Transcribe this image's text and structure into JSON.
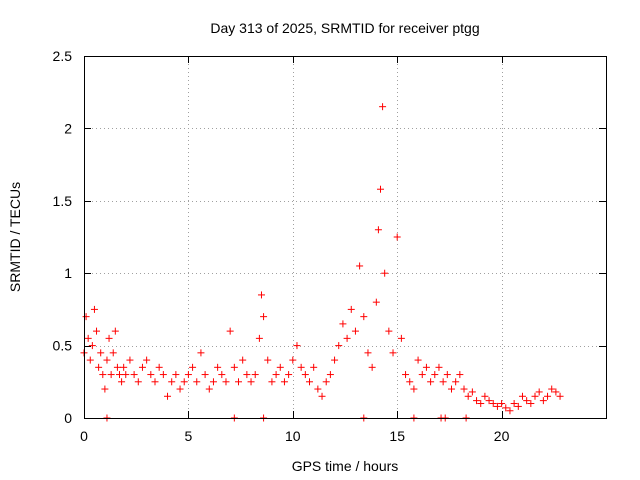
{
  "chart_data": {
    "type": "scatter",
    "title": "Day 313 of 2025, SRMTID for receiver ptgg",
    "xlabel": "GPS time / hours",
    "ylabel": "SRMTID / TECUs",
    "xlim": [
      0,
      25
    ],
    "ylim": [
      0,
      2.5
    ],
    "xticks": [
      0,
      5,
      10,
      15,
      20
    ],
    "xtick_labels": [
      "0",
      "5",
      "10",
      "15",
      "20"
    ],
    "yticks": [
      0,
      0.5,
      1,
      1.5,
      2,
      2.5
    ],
    "ytick_labels": [
      "0",
      "0.5",
      "1",
      "1.5",
      "2",
      "2.5"
    ],
    "grid": true,
    "marker": "+",
    "series": [
      {
        "name": "SRMTID",
        "color": "#ff0000",
        "x": [
          0.0,
          0.1,
          0.2,
          0.3,
          0.4,
          0.5,
          0.6,
          0.7,
          0.8,
          0.9,
          1.0,
          1.1,
          1.2,
          1.3,
          1.4,
          1.5,
          1.6,
          1.7,
          1.8,
          1.9,
          2.0,
          2.2,
          2.4,
          2.6,
          2.8,
          3.0,
          3.2,
          3.4,
          3.6,
          3.8,
          4.0,
          4.2,
          4.4,
          4.6,
          4.8,
          5.0,
          5.2,
          5.4,
          5.6,
          5.8,
          6.0,
          6.2,
          6.4,
          6.6,
          6.8,
          7.0,
          7.2,
          7.4,
          7.6,
          7.8,
          8.0,
          8.2,
          8.4,
          8.5,
          8.6,
          8.8,
          9.0,
          9.2,
          9.4,
          9.6,
          9.8,
          10.0,
          10.2,
          10.4,
          10.6,
          10.8,
          11.0,
          11.2,
          11.4,
          11.6,
          11.8,
          12.0,
          12.2,
          12.4,
          12.6,
          12.8,
          13.0,
          13.2,
          13.4,
          13.6,
          13.8,
          14.0,
          14.1,
          14.2,
          14.3,
          14.4,
          14.6,
          14.8,
          15.0,
          15.2,
          15.4,
          15.6,
          15.8,
          16.0,
          16.2,
          16.4,
          16.6,
          16.8,
          17.0,
          17.2,
          17.4,
          17.6,
          17.8,
          18.0,
          18.2,
          18.4,
          18.6,
          18.8,
          19.0,
          19.2,
          19.4,
          19.6,
          19.8,
          20.0,
          20.2,
          20.4,
          20.6,
          20.8,
          21.0,
          21.2,
          21.4,
          21.6,
          21.8,
          22.0,
          22.2,
          22.4,
          22.6,
          22.8,
          1.1,
          7.2,
          8.6,
          13.4,
          15.8,
          17.1,
          17.3,
          18.3
        ],
        "y": [
          0.45,
          0.7,
          0.55,
          0.4,
          0.5,
          0.75,
          0.6,
          0.35,
          0.45,
          0.3,
          0.2,
          0.4,
          0.55,
          0.3,
          0.45,
          0.6,
          0.35,
          0.3,
          0.25,
          0.35,
          0.3,
          0.4,
          0.3,
          0.25,
          0.35,
          0.4,
          0.3,
          0.25,
          0.35,
          0.3,
          0.15,
          0.25,
          0.3,
          0.2,
          0.25,
          0.3,
          0.35,
          0.25,
          0.45,
          0.3,
          0.2,
          0.25,
          0.35,
          0.3,
          0.25,
          0.6,
          0.35,
          0.25,
          0.4,
          0.3,
          0.25,
          0.3,
          0.55,
          0.85,
          0.7,
          0.4,
          0.25,
          0.3,
          0.35,
          0.25,
          0.3,
          0.4,
          0.5,
          0.35,
          0.3,
          0.25,
          0.35,
          0.2,
          0.15,
          0.25,
          0.3,
          0.4,
          0.5,
          0.65,
          0.55,
          0.75,
          0.6,
          1.05,
          0.7,
          0.45,
          0.35,
          0.8,
          1.3,
          1.58,
          2.15,
          1.0,
          0.6,
          0.45,
          1.25,
          0.55,
          0.3,
          0.25,
          0.2,
          0.4,
          0.3,
          0.35,
          0.25,
          0.3,
          0.35,
          0.25,
          0.3,
          0.2,
          0.25,
          0.3,
          0.2,
          0.15,
          0.18,
          0.12,
          0.1,
          0.15,
          0.12,
          0.1,
          0.08,
          0.1,
          0.07,
          0.05,
          0.1,
          0.08,
          0.15,
          0.12,
          0.1,
          0.15,
          0.18,
          0.12,
          0.15,
          0.2,
          0.18,
          0.15,
          0.0,
          0.0,
          0.0,
          0.0,
          0.0,
          0.0,
          0.0,
          0.0
        ]
      }
    ]
  }
}
